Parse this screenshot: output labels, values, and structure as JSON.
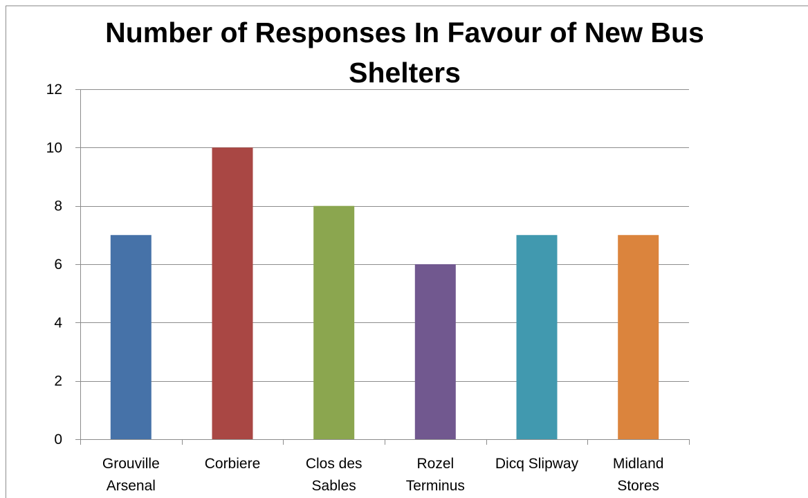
{
  "chart_data": {
    "type": "bar",
    "title": "Number of Responses In Favour of New Bus Shelters",
    "categories": [
      [
        "Grouville",
        "Arsenal"
      ],
      [
        "Corbiere"
      ],
      [
        "Clos des",
        "Sables"
      ],
      [
        "Rozel",
        "Terminus"
      ],
      [
        "Dicq Slipway"
      ],
      [
        "Midland",
        "Stores"
      ]
    ],
    "values": [
      7,
      10,
      8,
      6,
      7,
      7
    ],
    "colors": [
      "#4672A8",
      "#A94744",
      "#8BA64F",
      "#71588F",
      "#4199AF",
      "#DB843D"
    ],
    "ylim": [
      0,
      12
    ],
    "yticks": [
      0,
      2,
      4,
      6,
      8,
      10,
      12
    ],
    "xlabel": "",
    "ylabel": "",
    "grid": true,
    "legend": "none"
  }
}
